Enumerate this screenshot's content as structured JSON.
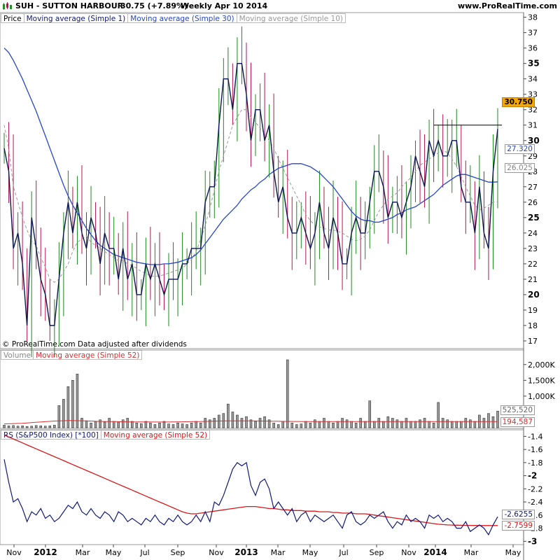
{
  "header": {
    "symbol": "SUH - SUTTON HARBOUR",
    "price_change": "30.75 (+7.89%)",
    "timeframe": "Weekly  Apr 10 2014",
    "site": "www.ProRealTime.com"
  },
  "price_legend": [
    "Price",
    "Moving average (Simple 1)",
    "Moving average (Simple 30)",
    "Moving average (Simple 10)"
  ],
  "copyright": "© ProRealTime.com  Data adjusted after dividends",
  "volume_legend": [
    "Volume",
    "Moving average (Simple 52)"
  ],
  "rs_legend": [
    "RS (S&P500 Index) [*100]",
    "Moving average (Simple 52)"
  ],
  "colors": {
    "up": "#1a8a1a",
    "down": "#b0184c",
    "close_line": "#0a1450",
    "ma30": "#2646c8",
    "ma10": "#9a9a9a",
    "rs": "#10187a",
    "rs_ma": "#d81818",
    "vol_ma": "#d83030"
  },
  "chart_data": [
    {
      "type": "line",
      "title": "SUH - SUTTON HARBOUR",
      "ylim": [
        16.5,
        38.3
      ],
      "y_ticks": [
        "38",
        "37",
        "36",
        "35",
        "34",
        "33",
        "32",
        "31",
        "30",
        "29",
        "28",
        "27",
        "26",
        "25",
        "24",
        "23",
        "22",
        "21",
        "20",
        "19",
        "18",
        "17"
      ],
      "x_ticks": [
        "Nov",
        "2012",
        "Mar",
        "May",
        "Jul",
        "Sep",
        "Nov",
        "2013",
        "Mar",
        "May",
        "Jul",
        "Sep",
        "Nov",
        "2014",
        "Mar",
        "May"
      ],
      "bold_ticks": [
        "35",
        "30",
        "25",
        "20",
        "2012",
        "2013",
        "2014"
      ],
      "resistance_level": 31.0,
      "last_price": 30.75,
      "ma30_last": 27.32,
      "ma10_last": 26.025,
      "labels": {
        "last": "30.750",
        "ma30": "27.320",
        "ma10": "26.025"
      },
      "close": [
        29.5,
        28,
        23,
        24,
        22,
        18,
        25,
        23,
        21,
        20,
        18,
        18,
        21,
        24,
        26,
        24,
        26,
        24,
        23,
        25,
        24,
        22,
        24,
        23,
        23,
        21,
        23,
        21,
        22,
        20,
        20,
        22,
        21,
        22,
        21,
        20,
        21,
        21,
        21,
        22,
        22,
        23,
        23,
        23,
        26,
        27,
        27,
        31,
        34,
        34,
        32,
        35,
        35,
        33,
        30,
        32,
        32,
        30,
        31,
        28,
        26,
        27,
        25,
        24,
        24,
        25,
        24,
        23,
        24,
        26,
        24,
        23,
        25,
        24,
        22,
        22,
        24,
        25,
        24,
        24,
        26,
        28,
        28,
        27,
        25,
        26,
        26,
        25,
        26,
        27,
        29,
        28,
        27,
        30,
        29,
        30,
        29,
        29,
        30,
        30,
        27,
        26,
        26,
        24,
        27,
        24,
        23,
        28,
        30.75
      ],
      "ma30": [
        36,
        35.7,
        35.2,
        34.6,
        34,
        33.3,
        32.6,
        31.9,
        31.1,
        30.3,
        29.5,
        28.7,
        27.9,
        27.1,
        26.4,
        25.8,
        25.3,
        24.8,
        24.3,
        23.9,
        23.5,
        23.2,
        23,
        22.8,
        22.6,
        22.5,
        22.4,
        22.3,
        22.2,
        22.1,
        22.05,
        22.0,
        21.95,
        21.95,
        21.95,
        22.0,
        22.0,
        22.05,
        22.1,
        22.2,
        22.3,
        22.4,
        22.6,
        22.9,
        23.3,
        23.7,
        24.1,
        24.5,
        24.9,
        25.2,
        25.5,
        25.8,
        26.2,
        26.5,
        26.8,
        27.0,
        27.3,
        27.5,
        27.8,
        28.0,
        28.2,
        28.3,
        28.4,
        28.5,
        28.5,
        28.5,
        28.4,
        28.3,
        28.1,
        27.9,
        27.6,
        27.3,
        27.0,
        26.6,
        26.2,
        25.8,
        25.4,
        25.1,
        24.9,
        24.8,
        24.8,
        24.7,
        24.7,
        24.8,
        24.9,
        25.0,
        25.2,
        25.3,
        25.5,
        25.6,
        25.7,
        25.9,
        26.1,
        26.3,
        26.5,
        26.8,
        27.1,
        27.3,
        27.5,
        27.7,
        27.8,
        27.8,
        27.7,
        27.6,
        27.5,
        27.4,
        27.3,
        27.3,
        27.32
      ],
      "ma10": [
        31,
        29.5,
        27,
        26,
        25,
        24.2,
        23.5,
        23.2,
        22.4,
        21.8,
        21,
        20.8,
        21,
        21.5,
        22,
        22.8,
        23.4,
        23.6,
        23.8,
        23.4,
        23.2,
        23,
        22.8,
        22.6,
        22.4,
        22.2,
        22.2,
        22,
        21.9,
        21.7,
        21.5,
        21.4,
        21.2,
        21.2,
        21.2,
        21.3,
        21.4,
        21.5,
        21.6,
        21.7,
        22,
        22.3,
        22.8,
        23.6,
        24.5,
        25.6,
        26.8,
        28,
        29,
        30,
        31,
        31.5,
        32,
        32,
        31.5,
        31.2,
        30.8,
        30.5,
        30,
        29.5,
        28.8,
        28.2,
        27.6,
        27,
        26.4,
        25.8,
        25.2,
        24.8,
        24.5,
        24.4,
        24.3,
        24.2,
        24.2,
        24.1,
        24.0,
        23.8,
        23.6,
        23.5,
        23.6,
        23.8,
        24.2,
        24.8,
        25.4,
        25.8,
        26.2,
        26.4,
        26.6,
        27,
        27.3,
        27.6,
        28,
        28.4,
        28.6,
        28.8,
        29,
        29.2,
        29.4,
        29.2,
        28.8,
        28.3,
        27.7,
        27,
        26.4,
        25.8,
        25.5,
        25.6,
        25.8,
        26.0,
        26.025
      ]
    },
    {
      "type": "bar",
      "title": "Volume",
      "y_ticks": [
        "2,000K",
        "1,500K",
        "1,000K"
      ],
      "ylim": [
        0,
        2150000
      ],
      "labels": {
        "last_volume": "525,520",
        "ma52": "194,587"
      },
      "ma52_last": 194587,
      "values": [
        80,
        60,
        70,
        50,
        60,
        40,
        50,
        70,
        60,
        50,
        60,
        80,
        700,
        900,
        1300,
        1500,
        1700,
        300,
        220,
        150,
        200,
        250,
        180,
        300,
        200,
        180,
        250,
        300,
        200,
        150,
        130,
        200,
        150,
        100,
        150,
        200,
        120,
        100,
        150,
        120,
        100,
        150,
        200,
        150,
        300,
        250,
        300,
        400,
        450,
        750,
        500,
        400,
        300,
        350,
        250,
        200,
        300,
        350,
        250,
        150,
        100,
        200,
        2150,
        150,
        100,
        120,
        200,
        150,
        250,
        200,
        300,
        200,
        150,
        200,
        300,
        250,
        200,
        150,
        300,
        200,
        850,
        200,
        300,
        200,
        350,
        300,
        250,
        200,
        300,
        200,
        200,
        250,
        300,
        200,
        150,
        800,
        300,
        250,
        200,
        200,
        200,
        300,
        250,
        200,
        400,
        300,
        450,
        350,
        525
      ],
      "ma52": [
        120,
        125,
        130,
        135,
        140,
        150,
        160,
        170,
        180,
        190,
        200,
        210,
        215,
        220,
        225,
        225,
        222,
        220,
        215,
        210,
        205,
        200,
        198,
        195,
        192,
        190,
        188,
        186,
        185,
        184,
        183,
        182,
        181,
        180,
        180,
        180,
        180,
        182,
        184,
        186,
        188,
        190,
        192,
        194,
        198,
        202,
        206,
        210,
        212,
        214,
        216,
        218,
        218,
        217,
        216,
        214,
        212,
        210,
        208,
        206,
        204,
        202,
        200,
        199,
        198,
        197,
        196,
        195,
        195,
        194,
        194,
        194,
        193,
        193,
        193,
        193,
        193,
        193,
        193,
        193,
        193,
        194,
        194,
        194,
        194,
        194,
        194,
        194,
        194,
        194,
        194,
        194,
        194,
        194,
        194,
        194,
        194,
        194,
        194,
        194,
        194,
        194,
        194,
        194,
        194,
        194,
        194,
        194,
        194,
        194.6
      ]
    },
    {
      "type": "line",
      "title": "RS (S&P500 Index) [*100]",
      "y_ticks": [
        "-1.4",
        "-1.6",
        "-1.8",
        "-2",
        "-2.2",
        "-2.4",
        "-2.6",
        "-2.8",
        "-3"
      ],
      "bold_ticks": [
        "-2",
        "-3"
      ],
      "ylim": [
        -3.05,
        -1.3
      ],
      "labels": {
        "rs": "-2.6255",
        "ma52": "-2.7599"
      },
      "rs": [
        -1.75,
        -2.1,
        -2.4,
        -2.35,
        -2.5,
        -2.7,
        -2.55,
        -2.6,
        -2.5,
        -2.65,
        -2.6,
        -2.7,
        -2.65,
        -2.55,
        -2.45,
        -2.5,
        -2.4,
        -2.55,
        -2.6,
        -2.5,
        -2.6,
        -2.65,
        -2.55,
        -2.6,
        -2.7,
        -2.55,
        -2.6,
        -2.7,
        -2.65,
        -2.7,
        -2.75,
        -2.65,
        -2.7,
        -2.6,
        -2.7,
        -2.75,
        -2.65,
        -2.7,
        -2.6,
        -2.7,
        -2.75,
        -2.7,
        -2.6,
        -2.7,
        -2.55,
        -2.7,
        -2.4,
        -2.45,
        -2.3,
        -2.1,
        -1.9,
        -1.8,
        -1.85,
        -1.8,
        -2.15,
        -2.3,
        -2.1,
        -2.05,
        -2.2,
        -2.5,
        -2.4,
        -2.5,
        -2.6,
        -2.5,
        -2.7,
        -2.6,
        -2.55,
        -2.7,
        -2.6,
        -2.65,
        -2.7,
        -2.65,
        -2.6,
        -2.7,
        -2.8,
        -2.6,
        -2.55,
        -2.7,
        -2.75,
        -2.7,
        -2.6,
        -2.65,
        -2.6,
        -2.55,
        -2.7,
        -2.8,
        -2.7,
        -2.75,
        -2.6,
        -2.7,
        -2.65,
        -2.7,
        -2.8,
        -2.6,
        -2.65,
        -2.6,
        -2.7,
        -2.65,
        -2.7,
        -2.8,
        -2.8,
        -2.7,
        -2.85,
        -2.8,
        -2.75,
        -2.8,
        -2.9,
        -2.75,
        -2.6255
      ],
      "ma52": [
        -1.38,
        -1.41,
        -1.44,
        -1.47,
        -1.5,
        -1.53,
        -1.56,
        -1.59,
        -1.62,
        -1.65,
        -1.68,
        -1.71,
        -1.74,
        -1.77,
        -1.8,
        -1.83,
        -1.86,
        -1.89,
        -1.92,
        -1.95,
        -1.98,
        -2.01,
        -2.04,
        -2.07,
        -2.1,
        -2.13,
        -2.16,
        -2.19,
        -2.22,
        -2.25,
        -2.28,
        -2.31,
        -2.34,
        -2.37,
        -2.4,
        -2.43,
        -2.46,
        -2.49,
        -2.52,
        -2.55,
        -2.57,
        -2.58,
        -2.58,
        -2.57,
        -2.56,
        -2.55,
        -2.54,
        -2.53,
        -2.52,
        -2.51,
        -2.5,
        -2.49,
        -2.48,
        -2.47,
        -2.47,
        -2.47,
        -2.48,
        -2.49,
        -2.5,
        -2.5,
        -2.51,
        -2.52,
        -2.52,
        -2.53,
        -2.53,
        -2.53,
        -2.54,
        -2.54,
        -2.54,
        -2.55,
        -2.55,
        -2.55,
        -2.56,
        -2.56,
        -2.57,
        -2.57,
        -2.57,
        -2.58,
        -2.58,
        -2.58,
        -2.59,
        -2.6,
        -2.61,
        -2.62,
        -2.63,
        -2.64,
        -2.65,
        -2.66,
        -2.67,
        -2.68,
        -2.69,
        -2.7,
        -2.71,
        -2.72,
        -2.73,
        -2.74,
        -2.745,
        -2.75,
        -2.752,
        -2.754,
        -2.756,
        -2.757,
        -2.758,
        -2.759,
        -2.7595,
        -2.7598,
        -2.7599,
        -2.7599,
        -2.7599
      ]
    }
  ]
}
